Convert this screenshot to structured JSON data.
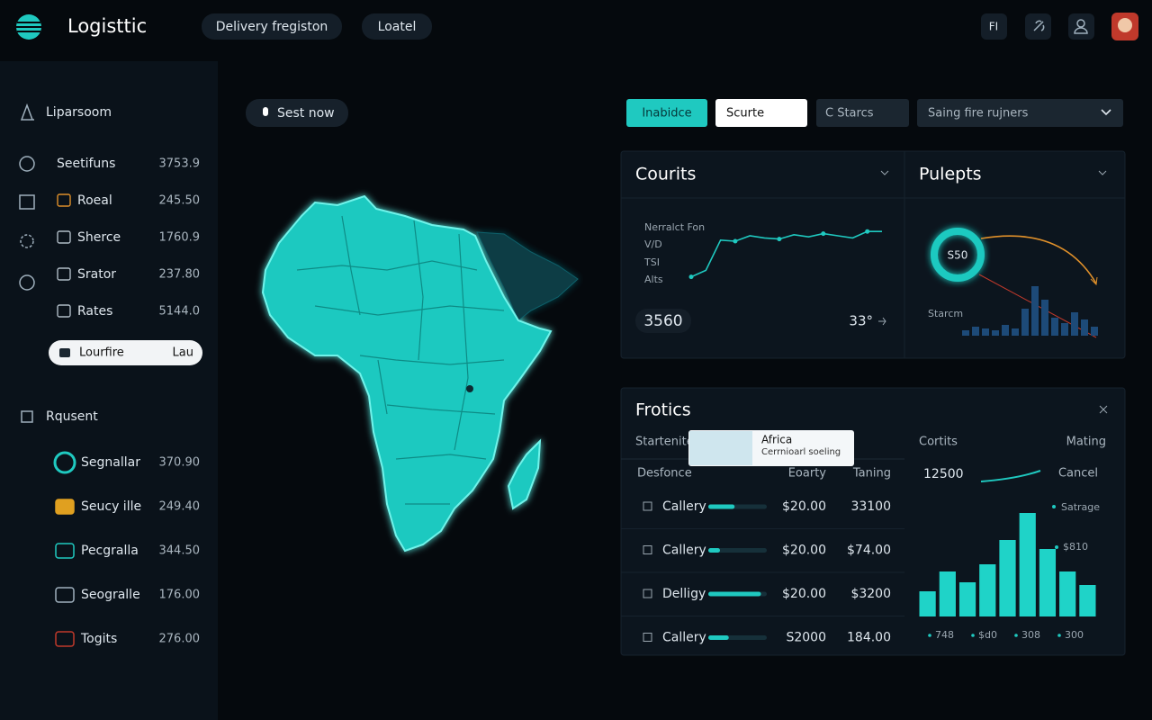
{
  "header": {
    "logo": "Logisttic",
    "tabs": [
      "Delivery fregiston",
      "Loatel"
    ],
    "icon_label": "FI"
  },
  "sidebar": {
    "heading": "Liparsoom",
    "items": [
      {
        "label": "Seetifuns",
        "value": "3753.9"
      },
      {
        "label": "Roeal",
        "value": "245.50"
      },
      {
        "label": "Sherce",
        "value": "1760.9"
      },
      {
        "label": "Srator",
        "value": "237.80"
      },
      {
        "label": "Rates",
        "value": "5144.0"
      }
    ],
    "active": {
      "label": "Lourfire",
      "value": "Lau"
    },
    "section": "Rqusent",
    "items2": [
      {
        "label": "Segnallar",
        "value": "370.90"
      },
      {
        "label": "Seucy ille",
        "value": "249.40"
      },
      {
        "label": "Pecgralla",
        "value": "344.50"
      },
      {
        "label": "Seogralle",
        "value": "176.00"
      },
      {
        "label": "Togits",
        "value": "276.00"
      }
    ]
  },
  "search_button": "Sest now",
  "filters": {
    "buttons": [
      "Inabidce",
      "Scurte",
      "C Starcs"
    ],
    "select": "Saing fire rujners"
  },
  "courits": {
    "title": "Courits",
    "labels": [
      "Nerralct Fon",
      "V/D",
      "TSI",
      "Alts"
    ],
    "line": [
      2,
      8,
      36,
      35,
      40,
      38,
      37,
      41,
      39,
      42,
      40,
      38,
      44,
      44
    ],
    "value": "3560",
    "stat": "33°"
  },
  "pulepts": {
    "title": "Pulepts",
    "donut_label": "S50",
    "bar_label": "Starcm",
    "bars": [
      6,
      10,
      8,
      6,
      12,
      8,
      30,
      55,
      40,
      20,
      14,
      26,
      18,
      10
    ]
  },
  "frotics": {
    "title": "Frotics",
    "subtitle": "Startenite",
    "tooltip": {
      "title": "Africa",
      "text": "Cerrnioarl soeling"
    },
    "columns": [
      "Desfonce",
      "Eoarty",
      "Taning"
    ],
    "rows": [
      {
        "name": "Callery",
        "progress": 45,
        "price": "$20.00",
        "total": "33100"
      },
      {
        "name": "Callery",
        "progress": 20,
        "price": "$20.00",
        "total": "$74.00"
      },
      {
        "name": "Delligy",
        "progress": 90,
        "price": "$20.00",
        "total": "$3200"
      },
      {
        "name": "Callery",
        "progress": 35,
        "price": "S2000",
        "total": "184.00"
      }
    ],
    "right": {
      "title": "Cortits",
      "action": "Mating",
      "value": "12500",
      "cancel": "Cancel",
      "legend": [
        "Satrage",
        "$810"
      ]
    },
    "bars": [
      28,
      50,
      38,
      58,
      85,
      115,
      75,
      50,
      35
    ],
    "bar_labels": [
      "748",
      "$d0",
      "308",
      "300"
    ]
  }
}
